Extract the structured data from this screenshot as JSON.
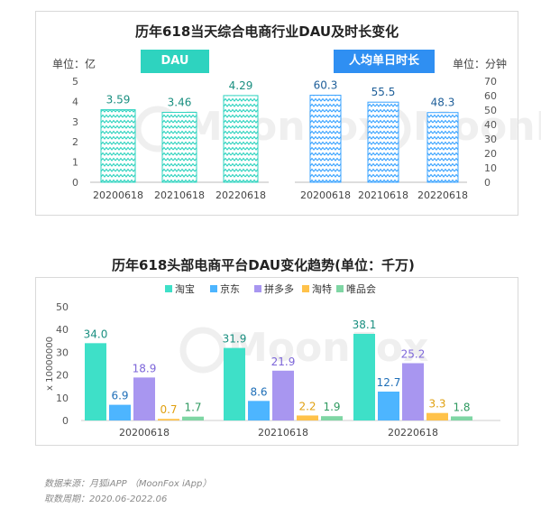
{
  "colors": {
    "dau_pill": "#2ed3bf",
    "duration_pill": "#2f8ff2",
    "dau_bar": "#2ed3bf",
    "duration_bar": "#3aa3ff",
    "taobao": "#3ee0c8",
    "jd": "#4db5ff",
    "pdd": "#a896f0",
    "taote": "#ffc24a",
    "vip": "#7fd6a4",
    "watermark": "#e3e3e3"
  },
  "top": {
    "title": "历年618当天综合电商行业DAU及时长变化",
    "left_unit": "单位：亿",
    "right_unit": "单位：分钟",
    "dau_label": "DAU",
    "duration_label": "人均单日时长"
  },
  "bottom": {
    "title": "历年618头部电商平台DAU变化趋势(单位：千万)"
  },
  "watermark": "MoonFox",
  "footer": {
    "source": "数据来源：月狐iAPP （MoonFox iApp）",
    "period": "取数周期：2020.06-2022.06"
  },
  "chart_data": [
    {
      "type": "bar",
      "title": "DAU",
      "ylabel": "单位：亿",
      "categories": [
        "20200618",
        "20210618",
        "20220618"
      ],
      "values": [
        3.59,
        3.46,
        4.29
      ],
      "ylim": [
        0,
        5
      ],
      "yticks": [
        0,
        1,
        2,
        3,
        4,
        5
      ]
    },
    {
      "type": "bar",
      "title": "人均单日时长",
      "ylabel": "单位：分钟",
      "categories": [
        "20200618",
        "20210618",
        "20220618"
      ],
      "values": [
        60.3,
        55.5,
        48.3
      ],
      "ylim": [
        0,
        70
      ],
      "yticks": [
        0,
        10,
        20,
        30,
        40,
        50,
        60,
        70
      ]
    },
    {
      "type": "bar",
      "title": "历年618头部电商平台DAU变化趋势(单位：千万)",
      "ylabel": "x 10000000",
      "categories": [
        "20200618",
        "20210618",
        "20220618"
      ],
      "series": [
        {
          "name": "淘宝",
          "values": [
            34.0,
            31.9,
            38.1
          ]
        },
        {
          "name": "京东",
          "values": [
            6.9,
            8.6,
            12.7
          ]
        },
        {
          "name": "拼多多",
          "values": [
            18.9,
            21.9,
            25.2
          ]
        },
        {
          "name": "淘特",
          "values": [
            0.7,
            2.2,
            3.3
          ]
        },
        {
          "name": "唯品会",
          "values": [
            1.7,
            1.9,
            1.8
          ]
        }
      ],
      "ylim": [
        0,
        50
      ],
      "yticks": [
        0,
        10,
        20,
        30,
        40,
        50
      ],
      "legend": "top"
    }
  ]
}
